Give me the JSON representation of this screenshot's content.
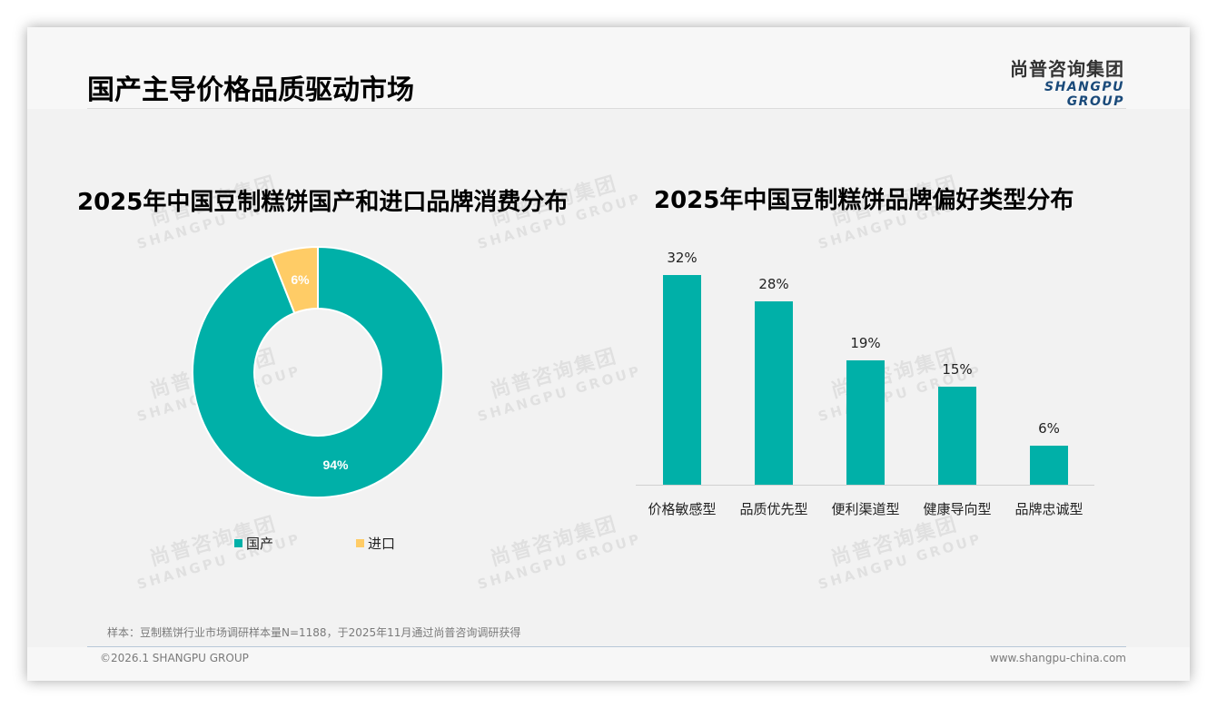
{
  "page": {
    "title": "国产主导价格品质驱动市场"
  },
  "logo": {
    "cn": "尚普咨询集团",
    "en": "SHANGPU GROUP"
  },
  "watermark": {
    "cn": "尚普咨询集团",
    "en": "SHANGPU GROUP"
  },
  "colors": {
    "teal": "#00b0a8",
    "yellow": "#ffcc66"
  },
  "chart_data": [
    {
      "type": "pie",
      "variant": "donut",
      "title": "2025年中国豆制糕饼国产和进口品牌消费分布",
      "categories": [
        "国产",
        "进口"
      ],
      "values": [
        94,
        6
      ],
      "labels": [
        "94%",
        "6%"
      ],
      "colors": [
        "#00b0a8",
        "#ffcc66"
      ],
      "legend": [
        "国产",
        "进口"
      ],
      "legend_position": "bottom"
    },
    {
      "type": "bar",
      "title": "2025年中国豆制糕饼品牌偏好类型分布",
      "categories": [
        "价格敏感型",
        "品质优先型",
        "便利渠道型",
        "健康导向型",
        "品牌忠诚型"
      ],
      "values": [
        32,
        28,
        19,
        15,
        6
      ],
      "labels": [
        "32%",
        "28%",
        "19%",
        "15%",
        "6%"
      ],
      "unit": "%",
      "color": "#00b0a8",
      "xlabel": "",
      "ylabel": "",
      "grid": false
    }
  ],
  "footer": {
    "note": "样本：豆制糕饼行业市场调研样本量N=1188，于2025年11月通过尚普咨询调研获得",
    "copyright": "©2026.1 SHANGPU GROUP",
    "website": "www.shangpu-china.com"
  }
}
